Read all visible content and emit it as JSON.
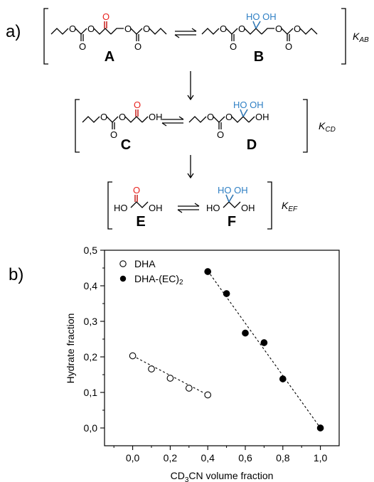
{
  "panel_labels": {
    "a": "a)",
    "b": "b)"
  },
  "scheme": {
    "colors": {
      "bond": "#000000",
      "ketone": "#e8231f",
      "hydrate": "#2e7fc4"
    },
    "rows": [
      {
        "left_label": "A",
        "right_label": "B",
        "constant_main": "K",
        "constant_sub": "AB"
      },
      {
        "left_label": "C",
        "right_label": "D",
        "constant_main": "K",
        "constant_sub": "CD"
      },
      {
        "left_label": "E",
        "right_label": "F",
        "constant_main": "K",
        "constant_sub": "EF"
      }
    ],
    "atoms": {
      "O": "O",
      "OH": "OH",
      "HO": "HO",
      "HO_OH": "HO OH"
    }
  },
  "chart_data": {
    "type": "scatter",
    "xlabel_main": "CD",
    "xlabel_sub": "3",
    "xlabel_rest": "CN volume fraction",
    "ylabel": "Hydrate fraction",
    "xlim": [
      -0.15,
      1.1
    ],
    "ylim": [
      -0.05,
      0.5
    ],
    "xticks": [
      "0,0",
      "0,2",
      "0,4",
      "0,6",
      "0,8",
      "1,0"
    ],
    "yticks": [
      "0,0",
      "0,1",
      "0,2",
      "0,3",
      "0,4",
      "0,5"
    ],
    "legend_position": "top-left",
    "series": [
      {
        "name": "DHA",
        "marker": "open-circle",
        "x": [
          0.0,
          0.1,
          0.2,
          0.3,
          0.4
        ],
        "y": [
          0.203,
          0.166,
          0.14,
          0.112,
          0.093
        ],
        "fit": [
          [
            0.0,
            0.203
          ],
          [
            0.4,
            0.093
          ]
        ]
      },
      {
        "name_main": "DHA-(EC)",
        "name_sub": "2",
        "marker": "filled-circle",
        "x": [
          0.4,
          0.5,
          0.6,
          0.7,
          0.8,
          1.0
        ],
        "y": [
          0.44,
          0.378,
          0.267,
          0.24,
          0.138,
          0.0
        ],
        "fit": [
          [
            0.4,
            0.442
          ],
          [
            1.0,
            0.0
          ]
        ]
      }
    ]
  }
}
